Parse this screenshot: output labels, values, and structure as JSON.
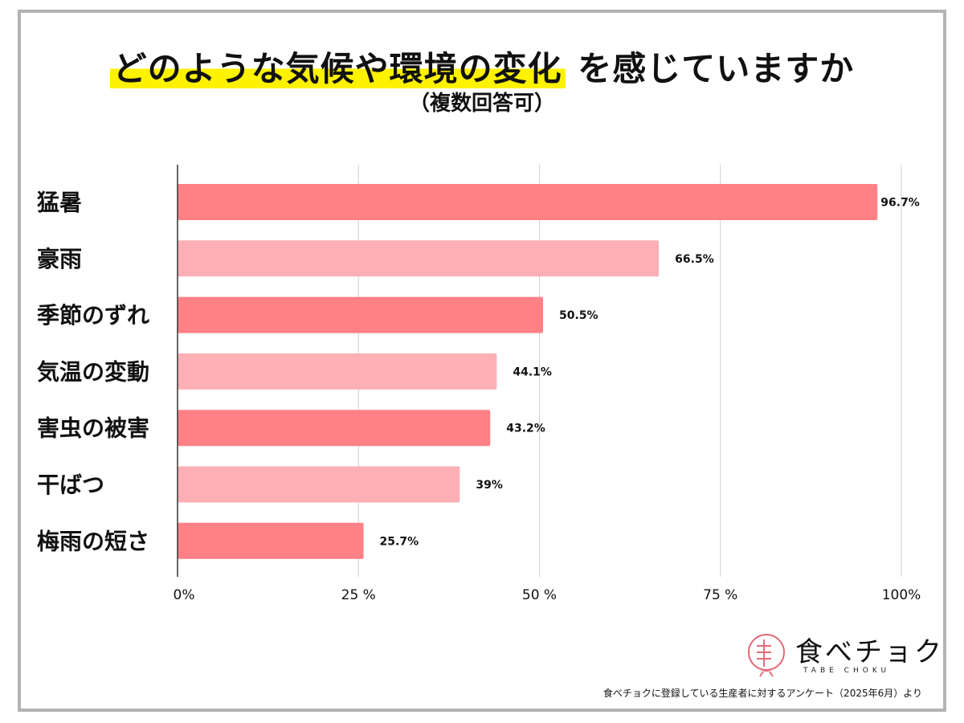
{
  "title": {
    "highlighted": "どのような気候や環境の変化",
    "rest": " を感じていますか",
    "subtitle": "（複数回答可）"
  },
  "colors": {
    "bar_dark": "#ff8085",
    "bar_light": "#fcb0b6",
    "highlight": "#fff200",
    "frame": "#b3b3b3",
    "logo_accent": "#e46b7a"
  },
  "chart_data": {
    "type": "bar",
    "orientation": "horizontal",
    "categories": [
      "猛暑",
      "豪雨",
      "季節のずれ",
      "気温の変動",
      "害虫の被害",
      "干ばつ",
      "梅雨の短さ"
    ],
    "values": [
      96.7,
      66.5,
      50.5,
      44.1,
      43.2,
      39,
      25.7
    ],
    "value_labels": [
      "96.7%",
      "66.5%",
      "50.5%",
      "44.1%",
      "43.2%",
      "39%",
      "25.7%"
    ],
    "xlim": [
      0,
      100
    ],
    "ticks": [
      0,
      25,
      50,
      75,
      100
    ],
    "tick_labels": [
      "0%",
      "25 %",
      "50 %",
      "75 %",
      "100%"
    ],
    "grid": true,
    "title": "どのような気候や環境の変化 を感じていますか",
    "subtitle": "（複数回答可）"
  },
  "logo": {
    "text": "食べチョク",
    "subtext": "TABE CHOKU",
    "icon": "tabechoku-logo-icon"
  },
  "source": "食べチョクに登録している生産者に対するアンケート（2025年6月）より"
}
